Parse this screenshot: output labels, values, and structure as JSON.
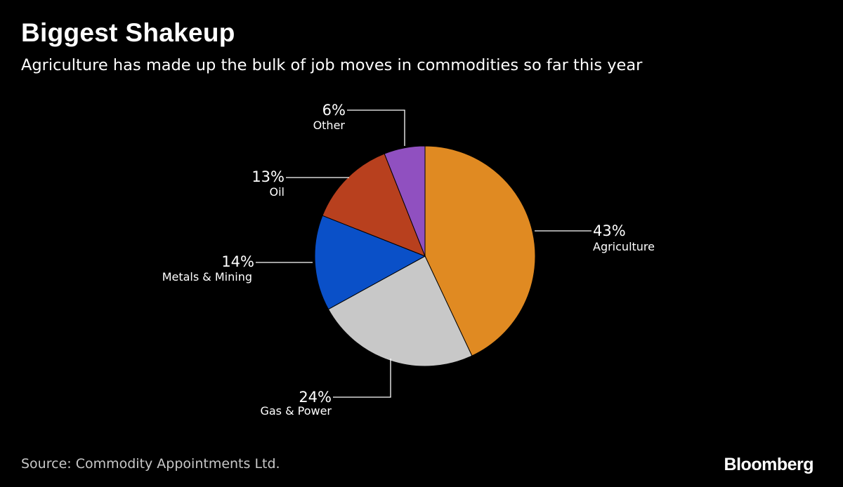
{
  "chart_data": {
    "type": "pie",
    "title": "Biggest Shakeup",
    "subtitle": "Agriculture has made up the bulk of job moves in commodities so far this year",
    "slices": [
      {
        "label": "Agriculture",
        "value": 43,
        "display": "43%",
        "color": "#e08a22"
      },
      {
        "label": "Gas & Power",
        "value": 24,
        "display": "24%",
        "color": "#c8c8c8"
      },
      {
        "label": "Metals & Mining",
        "value": 14,
        "display": "14%",
        "color": "#0a50c8"
      },
      {
        "label": "Oil",
        "value": 13,
        "display": "13%",
        "color": "#b8401e"
      },
      {
        "label": "Other",
        "value": 6,
        "display": "6%",
        "color": "#9050c0"
      }
    ],
    "start": "12 o'clock",
    "direction": "clockwise"
  },
  "footer": {
    "source": "Source: Commodity Appointments Ltd.",
    "brand": "Bloomberg"
  }
}
